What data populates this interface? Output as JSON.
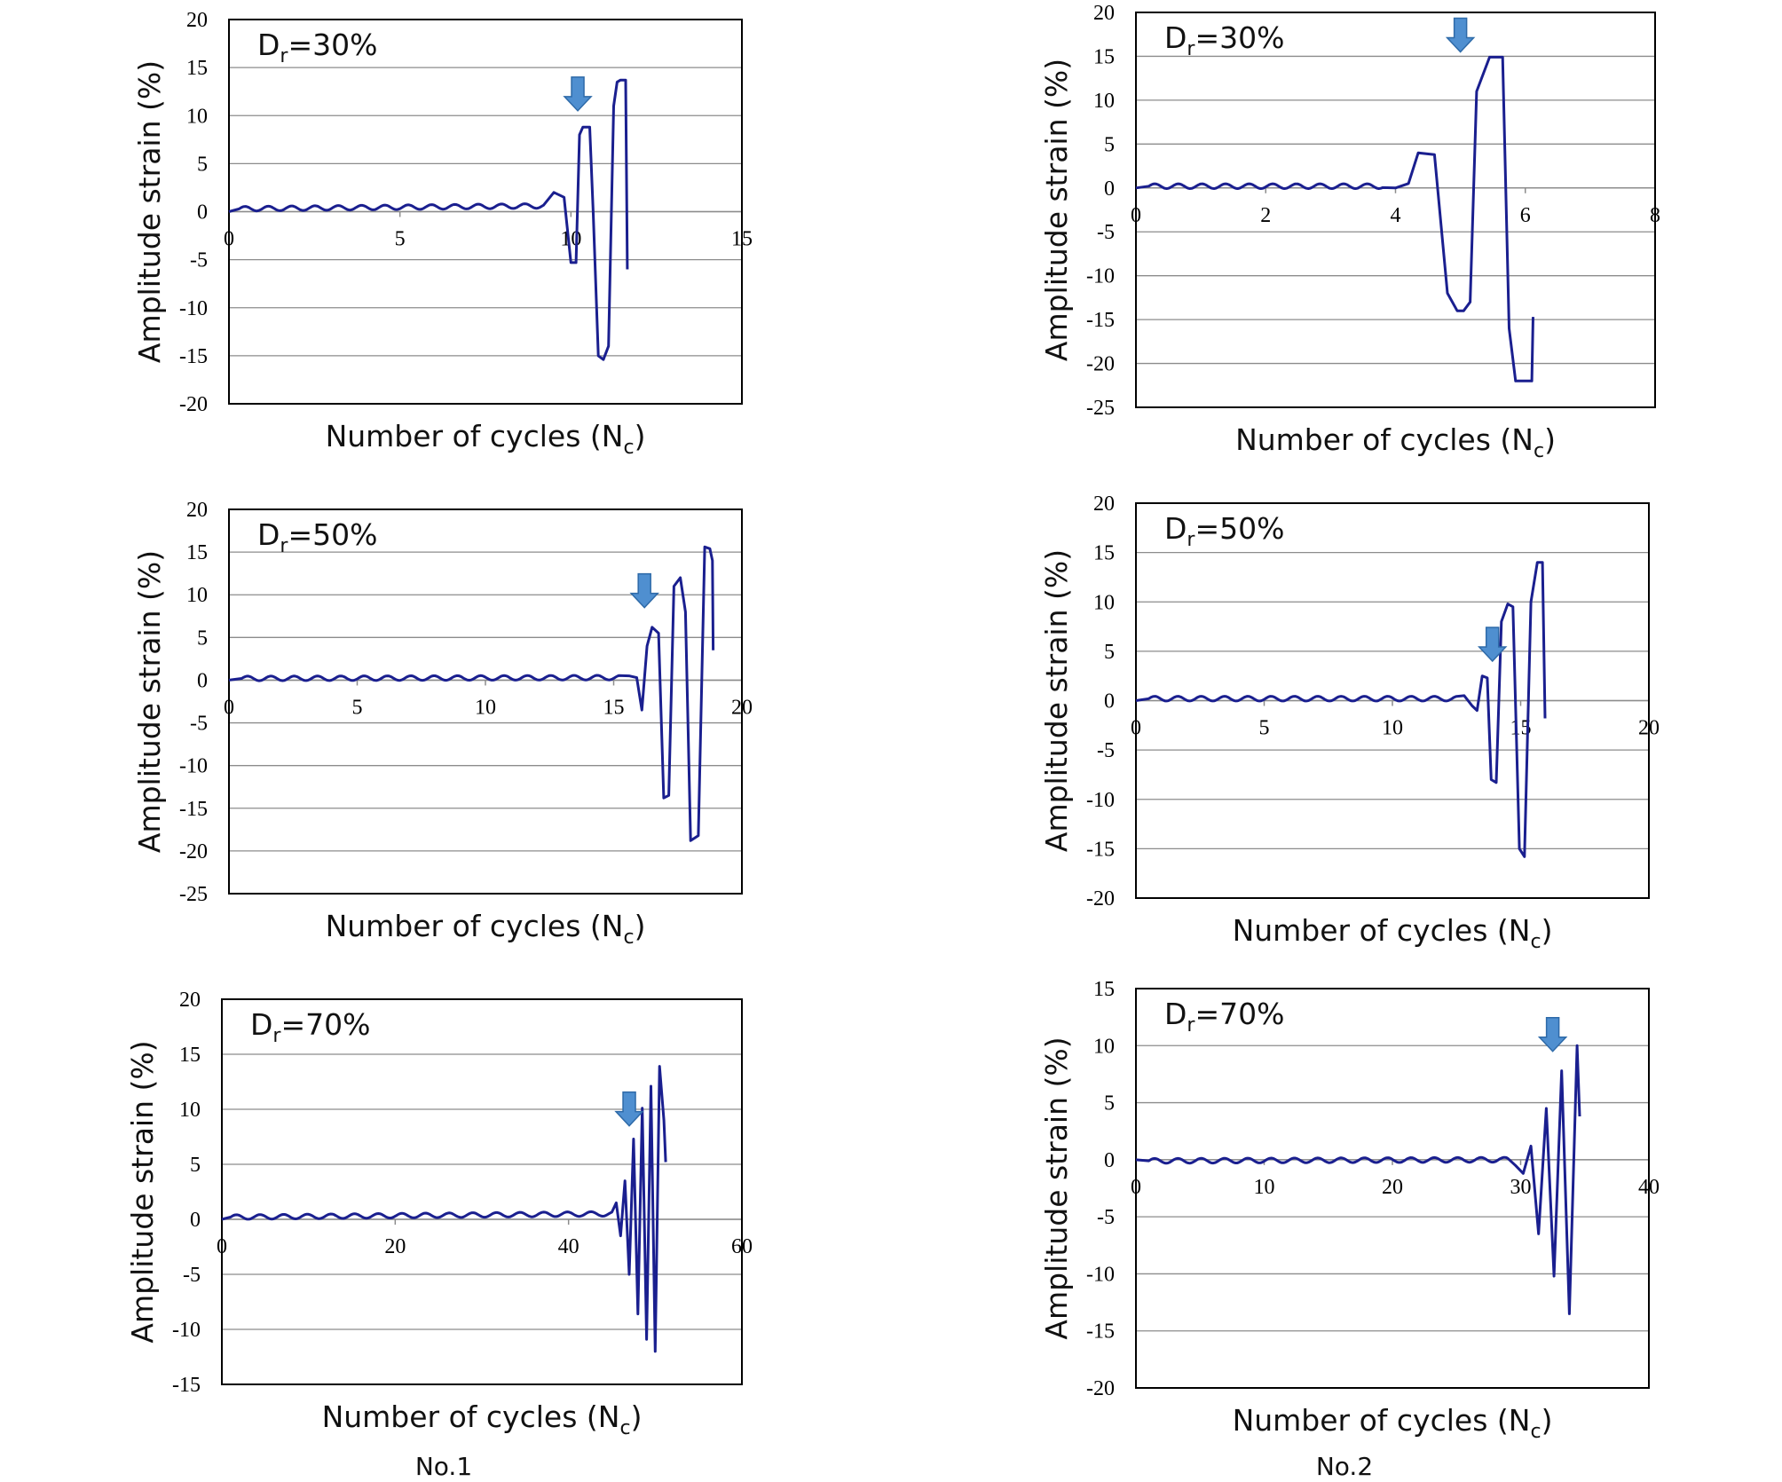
{
  "colors": {
    "line": "#1a1f8f",
    "grid": "#8c8c8c",
    "frame": "#000000",
    "arrow": "#4f8fd0",
    "arrow_edge": "#2e6aa8"
  },
  "columns": [
    "No.1",
    "No.2"
  ],
  "chart_data": [
    {
      "type": "line",
      "panel": "No.1 / Dr=30%",
      "annotation": {
        "main": "D",
        "sub": "r",
        "rest": "=30%"
      },
      "xlabel": {
        "main": "Number of cycles (N",
        "sub": "c",
        "rest": ")"
      },
      "ylabel": "Amplitude strain (%)",
      "xlim": [
        0,
        15
      ],
      "ylim": [
        -20,
        20
      ],
      "xticks": [
        "0",
        "5",
        "10",
        "15"
      ],
      "yticks": [
        "-20",
        "-15",
        "-10",
        "-5",
        "0",
        "5",
        "10",
        "15",
        "20"
      ],
      "grid": "horizontal",
      "arrow_at": {
        "x": 10.2,
        "y": 10.5
      },
      "series": [
        {
          "x": [
            0,
            0.3,
            9.2,
            9.5,
            9.8,
            10.0,
            10.15,
            10.25,
            10.35,
            10.55,
            10.65,
            10.8,
            10.95,
            11.1,
            11.25,
            11.35,
            11.45,
            11.6,
            11.65
          ],
          "y": [
            0,
            0.3,
            0.6,
            2,
            1.5,
            -5.3,
            -5.3,
            8,
            8.8,
            8.8,
            0,
            -15,
            -15.4,
            -14,
            11,
            13.5,
            13.7,
            13.7,
            -6
          ]
        }
      ]
    },
    {
      "type": "line",
      "panel": "No.2 / Dr=30%",
      "annotation": {
        "main": "D",
        "sub": "r",
        "rest": "=30%"
      },
      "xlabel": {
        "main": "Number of cycles (N",
        "sub": "c",
        "rest": ")"
      },
      "ylabel": "Amplitude strain (%)",
      "xlim": [
        0,
        8
      ],
      "ylim": [
        -25,
        20
      ],
      "xticks": [
        "0",
        "2",
        "4",
        "6",
        "8"
      ],
      "yticks": [
        "-25",
        "-20",
        "-15",
        "-10",
        "-5",
        "0",
        "5",
        "10",
        "15",
        "20"
      ],
      "grid": "horizontal",
      "arrow_at": {
        "x": 5.0,
        "y": 15.5
      },
      "series": [
        {
          "x": [
            0,
            0.2,
            3.8,
            4.0,
            4.2,
            4.35,
            4.6,
            4.8,
            4.95,
            5.05,
            5.15,
            5.25,
            5.45,
            5.65,
            5.75,
            5.85,
            6.05,
            6.1,
            6.12
          ],
          "y": [
            0,
            0.2,
            0.2,
            0,
            0.5,
            4,
            3.8,
            -12,
            -14,
            -14,
            -13,
            11,
            14.9,
            14.9,
            -16,
            -22,
            -22,
            -22,
            -14.7
          ]
        }
      ]
    },
    {
      "type": "line",
      "panel": "No.1 / Dr=50%",
      "annotation": {
        "main": "D",
        "sub": "r",
        "rest": "=50%"
      },
      "xlabel": {
        "main": "Number of cycles (N",
        "sub": "c",
        "rest": ")"
      },
      "ylabel": "Amplitude strain (%)",
      "xlim": [
        0,
        20
      ],
      "ylim": [
        -25,
        20
      ],
      "xticks": [
        "0",
        "5",
        "10",
        "15",
        "20"
      ],
      "yticks": [
        "-25",
        "-20",
        "-15",
        "-10",
        "-5",
        "0",
        "5",
        "10",
        "15",
        "20"
      ],
      "grid": "horizontal",
      "arrow_at": {
        "x": 16.2,
        "y": 8.5
      },
      "series": [
        {
          "x": [
            0,
            0.5,
            15.2,
            15.6,
            15.9,
            16.1,
            16.3,
            16.5,
            16.75,
            16.95,
            17.15,
            17.35,
            17.6,
            17.8,
            18.0,
            18.3,
            18.55,
            18.75,
            18.85,
            18.88
          ],
          "y": [
            0,
            0.2,
            0.3,
            0.5,
            0.3,
            -3.5,
            4,
            6.2,
            5.5,
            -13.8,
            -13.5,
            11,
            12,
            8,
            -18.8,
            -18.2,
            15.6,
            15.4,
            14,
            3.5
          ]
        }
      ]
    },
    {
      "type": "line",
      "panel": "No.2 / Dr=50%",
      "annotation": {
        "main": "D",
        "sub": "r",
        "rest": "=50%"
      },
      "xlabel": {
        "main": "Number of cycles (N",
        "sub": "c",
        "rest": ")"
      },
      "ylabel": "Amplitude strain (%)",
      "xlim": [
        0,
        20
      ],
      "ylim": [
        -20,
        20
      ],
      "xticks": [
        "0",
        "5",
        "10",
        "15",
        "20"
      ],
      "yticks": [
        "-20",
        "-15",
        "-10",
        "-5",
        "0",
        "5",
        "10",
        "15",
        "20"
      ],
      "grid": "horizontal",
      "arrow_at": {
        "x": 13.9,
        "y": 4.0
      },
      "series": [
        {
          "x": [
            0,
            0.5,
            12.5,
            12.8,
            13.1,
            13.3,
            13.5,
            13.7,
            13.85,
            14.05,
            14.25,
            14.5,
            14.7,
            14.95,
            15.15,
            15.4,
            15.65,
            15.85,
            15.95
          ],
          "y": [
            0,
            0.2,
            0.2,
            0.5,
            -0.5,
            -1,
            2.5,
            2.3,
            -8,
            -8.3,
            8,
            9.8,
            9.5,
            -15,
            -15.8,
            10,
            14,
            14,
            -1.8
          ]
        }
      ]
    },
    {
      "type": "line",
      "panel": "No.1 / Dr=70%",
      "annotation": {
        "main": "D",
        "sub": "r",
        "rest": "=70%"
      },
      "xlabel": {
        "main": "Number of cycles (N",
        "sub": "c",
        "rest": ")"
      },
      "ylabel": "Amplitude strain (%)",
      "xlim": [
        0,
        60
      ],
      "ylim": [
        -15,
        20
      ],
      "xticks": [
        "0",
        "20",
        "40",
        "60"
      ],
      "yticks": [
        "-15",
        "-10",
        "-5",
        "0",
        "5",
        "10",
        "15",
        "20"
      ],
      "grid": "horizontal",
      "arrow_at": {
        "x": 47.0,
        "y": 8.5
      },
      "series": [
        {
          "x": [
            0,
            1,
            45.0,
            45.5,
            46.0,
            46.5,
            47.0,
            47.5,
            48.0,
            48.5,
            49.0,
            49.5,
            50.0,
            50.5,
            51.0,
            51.2
          ],
          "y": [
            0,
            0.2,
            0.5,
            1.5,
            -1.5,
            3.5,
            -5,
            7.3,
            -8.6,
            10.1,
            -10.9,
            12.1,
            -12,
            13.9,
            9,
            5.2
          ]
        }
      ]
    },
    {
      "type": "line",
      "panel": "No.2 / Dr=70%",
      "annotation": {
        "main": "D",
        "sub": "r",
        "rest": "=70%"
      },
      "xlabel": {
        "main": "Number of cycles (N",
        "sub": "c",
        "rest": ")"
      },
      "ylabel": "Amplitude strain (%)",
      "xlim": [
        0,
        40
      ],
      "ylim": [
        -20,
        15
      ],
      "xticks": [
        "0",
        "10",
        "20",
        "30",
        "40"
      ],
      "yticks": [
        "-20",
        "-15",
        "-10",
        "-5",
        "0",
        "5",
        "10",
        "15"
      ],
      "grid": "horizontal",
      "arrow_at": {
        "x": 32.5,
        "y": 9.5
      },
      "series": [
        {
          "x": [
            0,
            1,
            29.0,
            29.6,
            30.2,
            30.8,
            31.4,
            32.0,
            32.6,
            33.2,
            33.8,
            34.4,
            34.6
          ],
          "y": [
            0,
            -0.1,
            0,
            -0.5,
            -1.2,
            1.2,
            -6.5,
            4.5,
            -10.2,
            7.8,
            -13.5,
            10,
            3.8
          ]
        }
      ]
    }
  ]
}
